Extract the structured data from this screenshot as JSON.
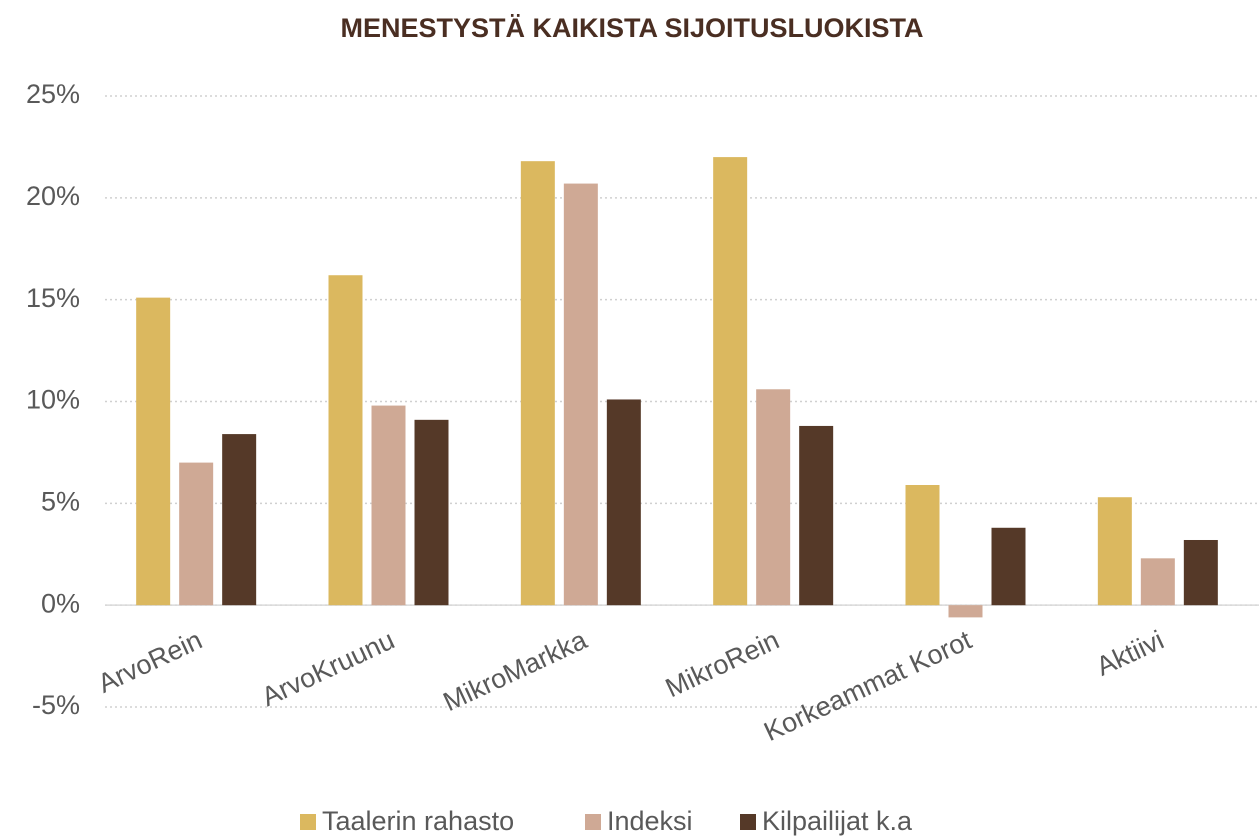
{
  "chart_data": {
    "type": "bar",
    "title": "MENESTYSTÄ KAIKISTA SIJOITUSLUOKISTA",
    "categories": [
      "ArvoRein",
      "ArvoKruunu",
      "MikroMarkka",
      "MikroRein",
      "Korkeammat Korot",
      "Aktiivi"
    ],
    "series": [
      {
        "name": "Taalerin rahasto",
        "color": "#dbb85f",
        "values": [
          15.1,
          16.2,
          21.8,
          22.0,
          5.9,
          5.3
        ]
      },
      {
        "name": "Indeksi",
        "color": "#cfa995",
        "values": [
          7.0,
          9.8,
          20.7,
          10.6,
          -0.6,
          2.3
        ]
      },
      {
        "name": "Kilpailijat k.a",
        "color": "#553928",
        "values": [
          8.4,
          9.1,
          10.1,
          8.8,
          3.8,
          3.2
        ]
      }
    ],
    "ylim": [
      -5,
      25
    ],
    "yticks": [
      {
        "value": -5,
        "label": "-5%"
      },
      {
        "value": 0,
        "label": "0%"
      },
      {
        "value": 5,
        "label": "5%"
      },
      {
        "value": 10,
        "label": "10%"
      },
      {
        "value": 15,
        "label": "15%"
      },
      {
        "value": 20,
        "label": "20%"
      },
      {
        "value": 25,
        "label": "25%"
      }
    ],
    "grid": true,
    "legend": "bottom"
  }
}
